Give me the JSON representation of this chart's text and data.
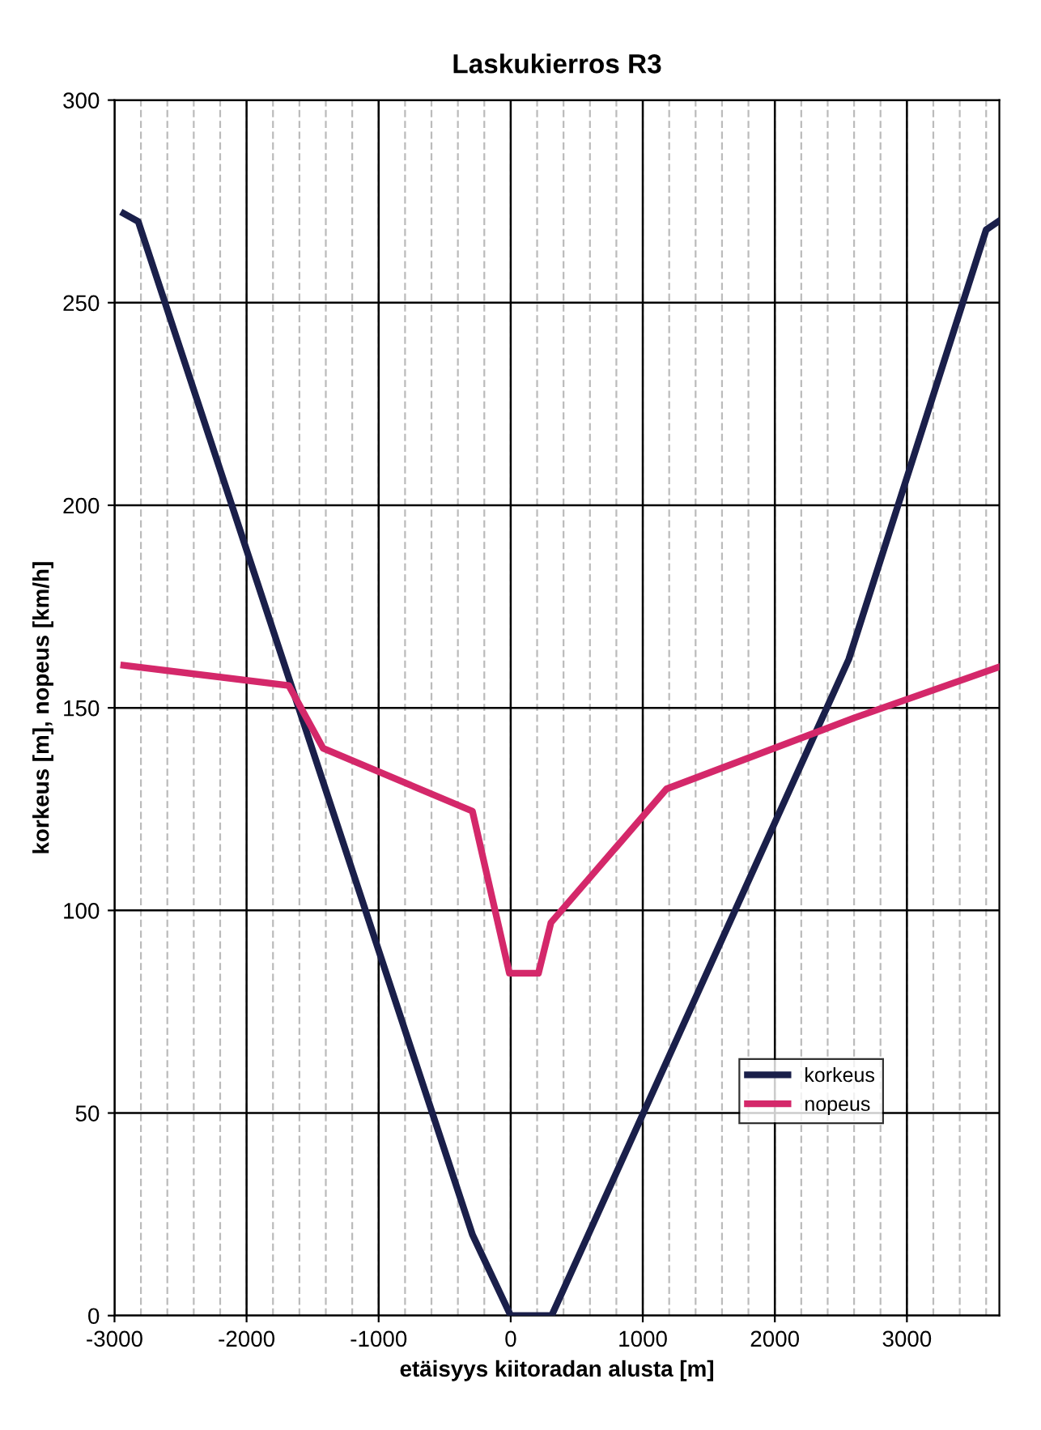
{
  "chart_data": {
    "type": "line",
    "title": "Laskukierros R3",
    "xlabel": "etäisyys kiitoradan alusta [m]",
    "ylabel": "korkeus [m], nopeus [km/h]",
    "series": [
      {
        "name": "korkeus",
        "color": "#1a1f4a",
        "x": [
          -2930,
          -2820,
          -290,
          0,
          310,
          2560,
          3600,
          3690
        ],
        "values": [
          272,
          270,
          20,
          0,
          0,
          162,
          268,
          270
        ]
      },
      {
        "name": "nopeus",
        "color": "#d4286a",
        "x": [
          -2930,
          -1680,
          -1420,
          -290,
          -10,
          210,
          305,
          1180,
          2600,
          3690
        ],
        "values": [
          160.5,
          155.5,
          140,
          124.5,
          84.5,
          84.5,
          97,
          130,
          147.5,
          160
        ]
      }
    ],
    "xlim": [
      -3000,
      3700
    ],
    "xticks": [
      -3000,
      -2000,
      -1000,
      0,
      1000,
      2000,
      3000
    ],
    "ylim": [
      0,
      300
    ],
    "yticks": [
      0,
      50,
      100,
      150,
      200,
      250,
      300
    ],
    "grid": true,
    "legend": "bottom right",
    "line_style": "solid",
    "marker": "none"
  }
}
